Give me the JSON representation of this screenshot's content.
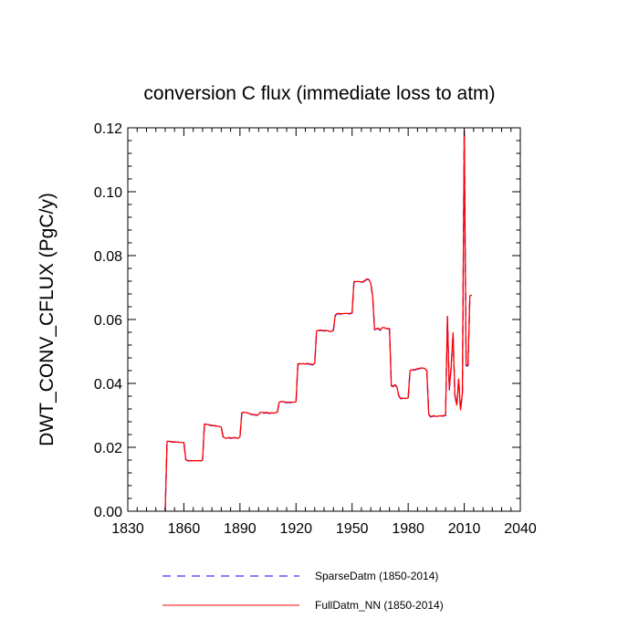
{
  "chart_data": {
    "type": "line",
    "title": "conversion C flux (immediate loss to atm)",
    "xlabel": "",
    "ylabel": "DWT_CONV_CFLUX  (PgC/y)",
    "xlim": [
      1830,
      2040
    ],
    "ylim": [
      0.0,
      0.12
    ],
    "xticks": [
      1830,
      1860,
      1890,
      1920,
      1950,
      1980,
      2010,
      2040
    ],
    "yticks": [
      0.0,
      0.02,
      0.04,
      0.06,
      0.08,
      0.1,
      0.12
    ],
    "ytick_labels": [
      "0.00",
      "0.02",
      "0.04",
      "0.06",
      "0.08",
      "0.10",
      "0.12"
    ],
    "grid": false,
    "legend_position": "bottom",
    "series": [
      {
        "name": "SparseDatm (1850-2014)",
        "color": "#0000ff",
        "style": "dashed",
        "x": [
          1850,
          1851,
          1852,
          1853,
          1854,
          1855,
          1856,
          1857,
          1858,
          1859,
          1860,
          1861,
          1862,
          1863,
          1864,
          1865,
          1866,
          1867,
          1868,
          1869,
          1870,
          1871,
          1872,
          1873,
          1874,
          1875,
          1876,
          1877,
          1878,
          1879,
          1880,
          1881,
          1882,
          1883,
          1884,
          1885,
          1886,
          1887,
          1888,
          1889,
          1890,
          1891,
          1892,
          1893,
          1894,
          1895,
          1896,
          1897,
          1898,
          1899,
          1900,
          1901,
          1902,
          1903,
          1904,
          1905,
          1906,
          1907,
          1908,
          1909,
          1910,
          1911,
          1912,
          1913,
          1914,
          1915,
          1916,
          1917,
          1918,
          1919,
          1920,
          1921,
          1922,
          1923,
          1924,
          1925,
          1926,
          1927,
          1928,
          1929,
          1930,
          1931,
          1932,
          1933,
          1934,
          1935,
          1936,
          1937,
          1938,
          1939,
          1940,
          1941,
          1942,
          1943,
          1944,
          1945,
          1946,
          1947,
          1948,
          1949,
          1950,
          1951,
          1952,
          1953,
          1954,
          1955,
          1956,
          1957,
          1958,
          1959,
          1960,
          1961,
          1962,
          1963,
          1964,
          1965,
          1966,
          1967,
          1968,
          1969,
          1970,
          1971,
          1972,
          1973,
          1974,
          1975,
          1976,
          1977,
          1978,
          1979,
          1980,
          1981,
          1982,
          1983,
          1984,
          1985,
          1986,
          1987,
          1988,
          1989,
          1990,
          1991,
          1992,
          1993,
          1994,
          1995,
          1996,
          1997,
          1998,
          1999,
          2000,
          2001,
          2002,
          2003,
          2004,
          2005,
          2006,
          2007,
          2008,
          2009,
          2010,
          2011,
          2012,
          2013,
          2014
        ],
        "values": [
          0.0,
          0.0218,
          0.0218,
          0.0217,
          0.0217,
          0.0216,
          0.0216,
          0.0216,
          0.0215,
          0.0215,
          0.0214,
          0.0162,
          0.0158,
          0.0158,
          0.0158,
          0.0158,
          0.0158,
          0.0158,
          0.0158,
          0.0158,
          0.016,
          0.0272,
          0.0271,
          0.027,
          0.0269,
          0.0268,
          0.0268,
          0.0267,
          0.0266,
          0.0264,
          0.0262,
          0.0232,
          0.0228,
          0.0228,
          0.023,
          0.0228,
          0.0229,
          0.023,
          0.0229,
          0.0228,
          0.0232,
          0.0307,
          0.0309,
          0.0308,
          0.0307,
          0.0305,
          0.0303,
          0.0302,
          0.0301,
          0.03,
          0.0302,
          0.0309,
          0.0308,
          0.0307,
          0.0308,
          0.0307,
          0.0306,
          0.0307,
          0.0306,
          0.0307,
          0.0309,
          0.034,
          0.0342,
          0.0342,
          0.0341,
          0.034,
          0.034,
          0.034,
          0.034,
          0.034,
          0.0342,
          0.046,
          0.0461,
          0.046,
          0.0461,
          0.0459,
          0.0462,
          0.046,
          0.0459,
          0.0458,
          0.0462,
          0.0562,
          0.0565,
          0.0566,
          0.0565,
          0.0564,
          0.0565,
          0.0564,
          0.0561,
          0.0562,
          0.0566,
          0.0612,
          0.0618,
          0.0618,
          0.0617,
          0.0617,
          0.0618,
          0.0618,
          0.0618,
          0.0618,
          0.062,
          0.0718,
          0.0718,
          0.0718,
          0.0718,
          0.0716,
          0.0718,
          0.0722,
          0.0726,
          0.0724,
          0.0712,
          0.0672,
          0.0568,
          0.057,
          0.0572,
          0.0566,
          0.0573,
          0.0574,
          0.0571,
          0.0571,
          0.057,
          0.0392,
          0.039,
          0.0395,
          0.0388,
          0.036,
          0.0352,
          0.0353,
          0.0352,
          0.0352,
          0.0354,
          0.0439,
          0.0441,
          0.0442,
          0.0443,
          0.0445,
          0.0446,
          0.0447,
          0.0447,
          0.0445,
          0.0438,
          0.0303,
          0.0295,
          0.0297,
          0.0298,
          0.0295,
          0.0297,
          0.0297,
          0.0298,
          0.0298,
          0.03,
          0.0608,
          0.038,
          0.045,
          0.0556,
          0.0362,
          0.033,
          0.0412,
          0.0315,
          0.0368,
          0.119,
          0.0455,
          0.0455,
          0.0672,
          0.0675
        ]
      },
      {
        "name": "FullDatm_NN (1850-2014)",
        "color": "#ff0000",
        "style": "solid",
        "x": [
          1850,
          1851,
          1852,
          1853,
          1854,
          1855,
          1856,
          1857,
          1858,
          1859,
          1860,
          1861,
          1862,
          1863,
          1864,
          1865,
          1866,
          1867,
          1868,
          1869,
          1870,
          1871,
          1872,
          1873,
          1874,
          1875,
          1876,
          1877,
          1878,
          1879,
          1880,
          1881,
          1882,
          1883,
          1884,
          1885,
          1886,
          1887,
          1888,
          1889,
          1890,
          1891,
          1892,
          1893,
          1894,
          1895,
          1896,
          1897,
          1898,
          1899,
          1900,
          1901,
          1902,
          1903,
          1904,
          1905,
          1906,
          1907,
          1908,
          1909,
          1910,
          1911,
          1912,
          1913,
          1914,
          1915,
          1916,
          1917,
          1918,
          1919,
          1920,
          1921,
          1922,
          1923,
          1924,
          1925,
          1926,
          1927,
          1928,
          1929,
          1930,
          1931,
          1932,
          1933,
          1934,
          1935,
          1936,
          1937,
          1938,
          1939,
          1940,
          1941,
          1942,
          1943,
          1944,
          1945,
          1946,
          1947,
          1948,
          1949,
          1950,
          1951,
          1952,
          1953,
          1954,
          1955,
          1956,
          1957,
          1958,
          1959,
          1960,
          1961,
          1962,
          1963,
          1964,
          1965,
          1966,
          1967,
          1968,
          1969,
          1970,
          1971,
          1972,
          1973,
          1974,
          1975,
          1976,
          1977,
          1978,
          1979,
          1980,
          1981,
          1982,
          1983,
          1984,
          1985,
          1986,
          1987,
          1988,
          1989,
          1990,
          1991,
          1992,
          1993,
          1994,
          1995,
          1996,
          1997,
          1998,
          1999,
          2000,
          2001,
          2002,
          2003,
          2004,
          2005,
          2006,
          2007,
          2008,
          2009,
          2010,
          2011,
          2012,
          2013,
          2014
        ],
        "values": [
          0.0,
          0.0219,
          0.0219,
          0.0218,
          0.0217,
          0.0217,
          0.0216,
          0.0216,
          0.0215,
          0.0215,
          0.0215,
          0.0163,
          0.0158,
          0.0158,
          0.0158,
          0.0158,
          0.0158,
          0.0158,
          0.0158,
          0.0158,
          0.016,
          0.0273,
          0.0272,
          0.0271,
          0.027,
          0.0269,
          0.0268,
          0.0267,
          0.0266,
          0.0265,
          0.0263,
          0.0233,
          0.0229,
          0.0228,
          0.0231,
          0.0229,
          0.0229,
          0.0231,
          0.0229,
          0.0228,
          0.0233,
          0.0308,
          0.031,
          0.0309,
          0.0308,
          0.0306,
          0.0304,
          0.0302,
          0.0302,
          0.0301,
          0.0303,
          0.031,
          0.0309,
          0.0308,
          0.0309,
          0.0308,
          0.0307,
          0.0308,
          0.0307,
          0.0308,
          0.031,
          0.0341,
          0.0343,
          0.0343,
          0.0342,
          0.0341,
          0.0341,
          0.0341,
          0.0341,
          0.0341,
          0.0343,
          0.0461,
          0.0462,
          0.0461,
          0.0462,
          0.046,
          0.0463,
          0.0461,
          0.046,
          0.0459,
          0.0463,
          0.0564,
          0.0566,
          0.0567,
          0.0566,
          0.0565,
          0.0566,
          0.0565,
          0.0562,
          0.0563,
          0.0567,
          0.0614,
          0.0619,
          0.0619,
          0.0618,
          0.0618,
          0.0619,
          0.0619,
          0.0619,
          0.0619,
          0.0621,
          0.0719,
          0.0719,
          0.0719,
          0.0719,
          0.0717,
          0.0719,
          0.0723,
          0.0727,
          0.0725,
          0.0713,
          0.0674,
          0.0569,
          0.0571,
          0.0573,
          0.0567,
          0.0574,
          0.0575,
          0.0572,
          0.0572,
          0.0571,
          0.0393,
          0.0391,
          0.0396,
          0.0389,
          0.0361,
          0.0353,
          0.0354,
          0.0353,
          0.0353,
          0.0355,
          0.044,
          0.0442,
          0.0443,
          0.0444,
          0.0446,
          0.0447,
          0.0448,
          0.0448,
          0.0446,
          0.0439,
          0.0304,
          0.0296,
          0.0298,
          0.0299,
          0.0296,
          0.0298,
          0.0298,
          0.0299,
          0.0299,
          0.0301,
          0.061,
          0.0382,
          0.0452,
          0.0558,
          0.0364,
          0.0332,
          0.0414,
          0.0317,
          0.037,
          0.1192,
          0.0457,
          0.0457,
          0.0674,
          0.0677
        ]
      }
    ]
  }
}
